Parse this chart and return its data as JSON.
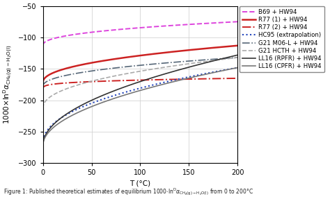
{
  "xlabel": "T (°C)",
  "xlim": [
    0,
    200
  ],
  "ylim": [
    -300,
    -50
  ],
  "xticks": [
    0,
    50,
    100,
    150,
    200
  ],
  "yticks": [
    -300,
    -250,
    -200,
    -150,
    -100,
    -50
  ],
  "figure_caption": "Figure 1: Published theoretical estimates of equilibrium 1000·lnᴰα",
  "series": [
    {
      "label": "B69 + HW94",
      "color": "#dd44dd",
      "linestyle": "--",
      "linewidth": 1.4,
      "T0": -113,
      "T200": -75,
      "exponent": 0.42
    },
    {
      "label": "R77 (1) + HW94",
      "color": "#cc2222",
      "linestyle": "-",
      "linewidth": 1.8,
      "T0": -172,
      "T200": -113,
      "exponent": 0.45
    },
    {
      "label": "R77 (2) + HW94",
      "color": "#cc2222",
      "linestyle": "-.",
      "linewidth": 1.4,
      "T0": -183,
      "T200": -165,
      "exponent": 0.25
    },
    {
      "label": "HC95 (extrapolation)",
      "color": "#2244bb",
      "linestyle": ":",
      "linewidth": 1.5,
      "T0": -270,
      "T200": -148,
      "exponent": 0.45
    },
    {
      "label": "G21 M06-L + HW94",
      "color": "#556677",
      "linestyle": "-.",
      "linewidth": 1.2,
      "T0": -178,
      "T200": -132,
      "exponent": 0.45
    },
    {
      "label": "G21 HCTH + HW94",
      "color": "#aaaaaa",
      "linestyle": "--",
      "linewidth": 1.2,
      "T0": -213,
      "T200": -132,
      "exponent": 0.45
    },
    {
      "label": "LL16 (RPFR) + HW94",
      "color": "#333333",
      "linestyle": "-",
      "linewidth": 1.2,
      "T0": -272,
      "T200": -128,
      "exponent": 0.5
    },
    {
      "label": "LL16 (CPFR) + HW94",
      "color": "#777777",
      "linestyle": "-",
      "linewidth": 1.2,
      "T0": -272,
      "T200": -148,
      "exponent": 0.5
    }
  ],
  "background_color": "#ffffff",
  "grid_color": "#cccccc",
  "legend_fontsize": 6.2,
  "axis_label_fontsize": 7.5,
  "tick_fontsize": 7.0
}
